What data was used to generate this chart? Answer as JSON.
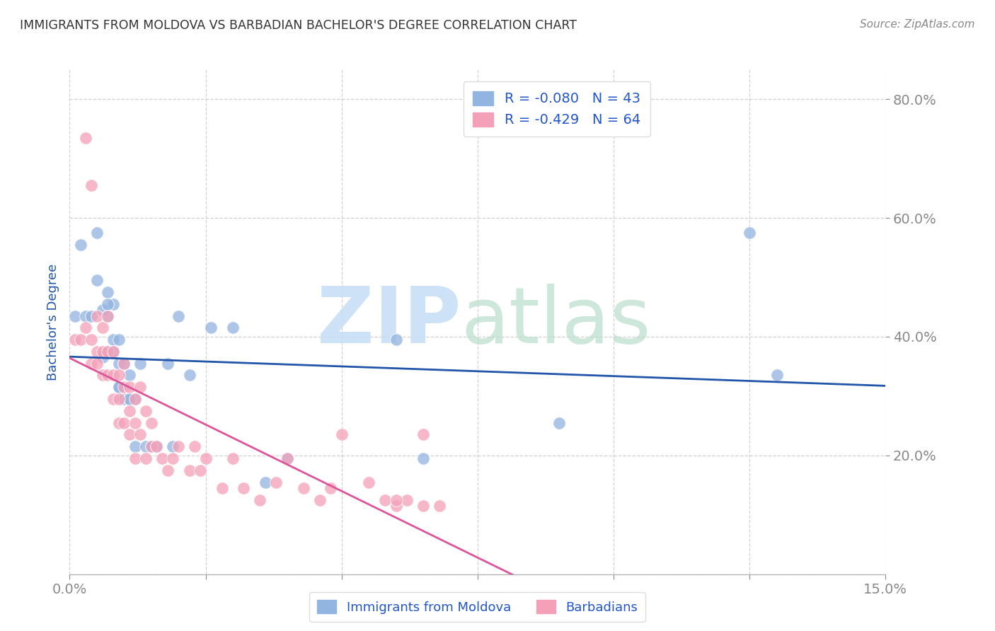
{
  "title": "IMMIGRANTS FROM MOLDOVA VS BARBADIAN BACHELOR'S DEGREE CORRELATION CHART",
  "source": "Source: ZipAtlas.com",
  "ylabel": "Bachelor's Degree",
  "legend_label1": "Immigrants from Moldova",
  "legend_label2": "Barbadians",
  "R1": -0.08,
  "N1": 43,
  "R2": -0.429,
  "N2": 64,
  "xlim": [
    0.0,
    0.15
  ],
  "ylim": [
    0.0,
    0.85
  ],
  "color_blue": "#92B4E0",
  "color_pink": "#F4A0B8",
  "color_line_blue": "#2255AA",
  "color_line_pink": "#DD5599",
  "blue_points_x": [
    0.001,
    0.002,
    0.003,
    0.004,
    0.005,
    0.005,
    0.006,
    0.006,
    0.007,
    0.007,
    0.007,
    0.008,
    0.008,
    0.008,
    0.009,
    0.009,
    0.009,
    0.01,
    0.01,
    0.011,
    0.011,
    0.012,
    0.012,
    0.013,
    0.014,
    0.015,
    0.016,
    0.018,
    0.019,
    0.02,
    0.022,
    0.026,
    0.03,
    0.036,
    0.04,
    0.06,
    0.065,
    0.09,
    0.125,
    0.13,
    0.007,
    0.009,
    0.011
  ],
  "blue_points_y": [
    0.435,
    0.555,
    0.435,
    0.435,
    0.575,
    0.495,
    0.445,
    0.365,
    0.475,
    0.435,
    0.375,
    0.455,
    0.395,
    0.375,
    0.355,
    0.315,
    0.315,
    0.355,
    0.295,
    0.335,
    0.295,
    0.295,
    0.215,
    0.355,
    0.215,
    0.215,
    0.215,
    0.355,
    0.215,
    0.435,
    0.335,
    0.415,
    0.415,
    0.155,
    0.195,
    0.395,
    0.195,
    0.255,
    0.575,
    0.335,
    0.455,
    0.395,
    0.295
  ],
  "pink_points_x": [
    0.001,
    0.002,
    0.003,
    0.004,
    0.004,
    0.005,
    0.005,
    0.005,
    0.006,
    0.006,
    0.006,
    0.007,
    0.007,
    0.007,
    0.008,
    0.008,
    0.008,
    0.009,
    0.009,
    0.009,
    0.01,
    0.01,
    0.01,
    0.011,
    0.011,
    0.011,
    0.012,
    0.012,
    0.012,
    0.013,
    0.013,
    0.014,
    0.014,
    0.015,
    0.015,
    0.016,
    0.017,
    0.018,
    0.019,
    0.02,
    0.022,
    0.023,
    0.024,
    0.025,
    0.028,
    0.03,
    0.032,
    0.035,
    0.038,
    0.04,
    0.043,
    0.046,
    0.048,
    0.05,
    0.055,
    0.058,
    0.06,
    0.062,
    0.065,
    0.068,
    0.003,
    0.004,
    0.06,
    0.065
  ],
  "pink_points_y": [
    0.395,
    0.395,
    0.415,
    0.395,
    0.355,
    0.435,
    0.375,
    0.355,
    0.415,
    0.375,
    0.335,
    0.435,
    0.375,
    0.335,
    0.375,
    0.335,
    0.295,
    0.335,
    0.295,
    0.255,
    0.355,
    0.315,
    0.255,
    0.315,
    0.275,
    0.235,
    0.295,
    0.255,
    0.195,
    0.315,
    0.235,
    0.275,
    0.195,
    0.255,
    0.215,
    0.215,
    0.195,
    0.175,
    0.195,
    0.215,
    0.175,
    0.215,
    0.175,
    0.195,
    0.145,
    0.195,
    0.145,
    0.125,
    0.155,
    0.195,
    0.145,
    0.125,
    0.145,
    0.235,
    0.155,
    0.125,
    0.115,
    0.125,
    0.235,
    0.115,
    0.735,
    0.655,
    0.125,
    0.115
  ]
}
